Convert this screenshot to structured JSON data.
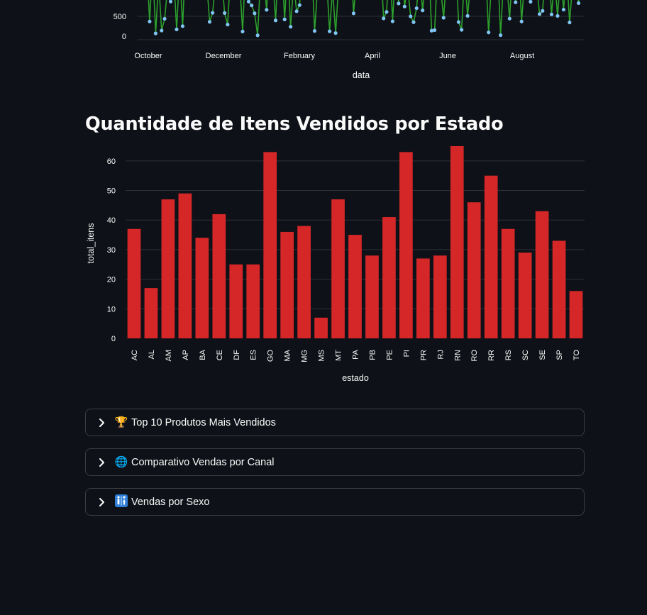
{
  "top_chart": {
    "y_ticks": [
      "500",
      "0"
    ],
    "x_ticks": [
      "October",
      "December",
      "February",
      "April",
      "June",
      "August"
    ],
    "x_title": "data",
    "line_color": "#2ca02c",
    "marker_color": "#7fc4f2"
  },
  "section": {
    "title": "Quantidade de Itens Vendidos por Estado"
  },
  "chart_data": {
    "type": "bar",
    "categories": [
      "AC",
      "AL",
      "AM",
      "AP",
      "BA",
      "CE",
      "DF",
      "ES",
      "GO",
      "MA",
      "MG",
      "MS",
      "MT",
      "PA",
      "PB",
      "PE",
      "PI",
      "PR",
      "RJ",
      "RN",
      "RO",
      "RR",
      "RS",
      "SC",
      "SE",
      "SP",
      "TO"
    ],
    "values": [
      37,
      17,
      47,
      49,
      34,
      42,
      25,
      25,
      63,
      36,
      38,
      7,
      47,
      35,
      28,
      41,
      63,
      27,
      28,
      65,
      46,
      55,
      37,
      29,
      43,
      33,
      16
    ],
    "xlabel": "estado",
    "ylabel": "total_itens",
    "ylim": [
      0,
      65
    ],
    "y_ticks": [
      0,
      10,
      20,
      30,
      40,
      50,
      60
    ],
    "bar_color": "#d62728",
    "grid": true
  },
  "expanders": [
    {
      "icon": "trophy-icon",
      "emoji": "🏆",
      "label": "Top 10 Produtos Mais Vendidos"
    },
    {
      "icon": "globe-icon",
      "emoji": "🌐",
      "label": "Comparativo Vendas por Canal"
    },
    {
      "icon": "restroom-icon",
      "emoji": "",
      "label": "Vendas por Sexo"
    }
  ]
}
